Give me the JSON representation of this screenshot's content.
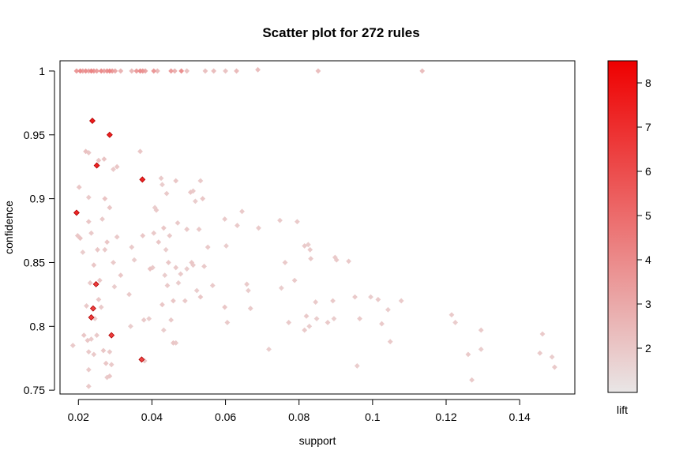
{
  "chart_data": {
    "type": "scatter",
    "title": "Scatter plot for 272 rules",
    "xlabel": "support",
    "ylabel": "confidence",
    "colorbar_label": "lift",
    "xlim": [
      0.015,
      0.155
    ],
    "ylim": [
      0.747,
      1.008
    ],
    "xticks": [
      0.02,
      0.04,
      0.06,
      0.08,
      0.1,
      0.12,
      0.14
    ],
    "xtick_labels": [
      "0.02",
      "0.04",
      "0.06",
      "0.08",
      "0.1",
      "0.12",
      "0.14"
    ],
    "yticks": [
      0.75,
      0.8,
      0.85,
      0.9,
      0.95,
      1.0
    ],
    "ytick_labels": [
      "0.75",
      "0.8",
      "0.85",
      "0.9",
      "0.95",
      "1"
    ],
    "color_scale": {
      "min": 1.0,
      "max": 8.5,
      "low_color": "#e9e6e6",
      "high_color": "#ee0000",
      "ticks": [
        2,
        3,
        4,
        5,
        6,
        7,
        8
      ],
      "tick_labels": [
        "2",
        "3",
        "4",
        "5",
        "6",
        "7",
        "8"
      ]
    },
    "points": [
      {
        "x": 0.0195,
        "y": 1.0,
        "lift": 3.5
      },
      {
        "x": 0.0205,
        "y": 1.0,
        "lift": 4.0
      },
      {
        "x": 0.0212,
        "y": 1.0,
        "lift": 3.2
      },
      {
        "x": 0.022,
        "y": 1.0,
        "lift": 3.8
      },
      {
        "x": 0.0228,
        "y": 1.0,
        "lift": 3.0
      },
      {
        "x": 0.0235,
        "y": 1.0,
        "lift": 4.2
      },
      {
        "x": 0.0242,
        "y": 1.0,
        "lift": 3.6
      },
      {
        "x": 0.025,
        "y": 1.0,
        "lift": 3.3
      },
      {
        "x": 0.0262,
        "y": 1.0,
        "lift": 3.9
      },
      {
        "x": 0.027,
        "y": 1.0,
        "lift": 3.1
      },
      {
        "x": 0.0278,
        "y": 1.0,
        "lift": 3.7
      },
      {
        "x": 0.0285,
        "y": 1.0,
        "lift": 4.1
      },
      {
        "x": 0.0292,
        "y": 1.0,
        "lift": 3.4
      },
      {
        "x": 0.03,
        "y": 1.0,
        "lift": 3.0
      },
      {
        "x": 0.0315,
        "y": 1.0,
        "lift": 2.6
      },
      {
        "x": 0.0345,
        "y": 1.0,
        "lift": 2.5
      },
      {
        "x": 0.0358,
        "y": 1.0,
        "lift": 3.4
      },
      {
        "x": 0.0368,
        "y": 1.0,
        "lift": 3.9
      },
      {
        "x": 0.0375,
        "y": 1.0,
        "lift": 3.6
      },
      {
        "x": 0.0382,
        "y": 1.0,
        "lift": 3.0
      },
      {
        "x": 0.0405,
        "y": 1.0,
        "lift": 3.5
      },
      {
        "x": 0.0415,
        "y": 1.0,
        "lift": 2.4
      },
      {
        "x": 0.0452,
        "y": 1.0,
        "lift": 3.4
      },
      {
        "x": 0.0462,
        "y": 1.0,
        "lift": 2.7
      },
      {
        "x": 0.048,
        "y": 1.0,
        "lift": 3.8
      },
      {
        "x": 0.0495,
        "y": 1.0,
        "lift": 2.2
      },
      {
        "x": 0.0545,
        "y": 1.0,
        "lift": 2.2
      },
      {
        "x": 0.0568,
        "y": 1.0,
        "lift": 2.3
      },
      {
        "x": 0.06,
        "y": 1.0,
        "lift": 2.1
      },
      {
        "x": 0.063,
        "y": 1.0,
        "lift": 2.4
      },
      {
        "x": 0.0688,
        "y": 1.001,
        "lift": 2.3
      },
      {
        "x": 0.0852,
        "y": 1.0,
        "lift": 2.3
      },
      {
        "x": 0.1135,
        "y": 1.0,
        "lift": 2.3
      },
      {
        "x": 0.0238,
        "y": 0.961,
        "lift": 7.6
      },
      {
        "x": 0.0285,
        "y": 0.95,
        "lift": 7.5
      },
      {
        "x": 0.025,
        "y": 0.926,
        "lift": 7.4
      },
      {
        "x": 0.0374,
        "y": 0.915,
        "lift": 7.4
      },
      {
        "x": 0.0195,
        "y": 0.889,
        "lift": 7.3
      },
      {
        "x": 0.0248,
        "y": 0.833,
        "lift": 6.5
      },
      {
        "x": 0.024,
        "y": 0.814,
        "lift": 6.4
      },
      {
        "x": 0.0235,
        "y": 0.807,
        "lift": 6.6
      },
      {
        "x": 0.029,
        "y": 0.793,
        "lift": 6.5
      },
      {
        "x": 0.0372,
        "y": 0.774,
        "lift": 6.3
      },
      {
        "x": 0.022,
        "y": 0.937,
        "lift": 2.2
      },
      {
        "x": 0.0228,
        "y": 0.936,
        "lift": 2.0
      },
      {
        "x": 0.0255,
        "y": 0.93,
        "lift": 2.0
      },
      {
        "x": 0.027,
        "y": 0.931,
        "lift": 2.1
      },
      {
        "x": 0.0305,
        "y": 0.925,
        "lift": 2.0
      },
      {
        "x": 0.0295,
        "y": 0.923,
        "lift": 1.9
      },
      {
        "x": 0.0368,
        "y": 0.937,
        "lift": 2.0
      },
      {
        "x": 0.0202,
        "y": 0.909,
        "lift": 2.0
      },
      {
        "x": 0.0228,
        "y": 0.901,
        "lift": 1.9
      },
      {
        "x": 0.0272,
        "y": 0.9,
        "lift": 2.1
      },
      {
        "x": 0.0285,
        "y": 0.893,
        "lift": 2.0
      },
      {
        "x": 0.0265,
        "y": 0.884,
        "lift": 1.9
      },
      {
        "x": 0.0228,
        "y": 0.882,
        "lift": 2.0
      },
      {
        "x": 0.0198,
        "y": 0.871,
        "lift": 2.0
      },
      {
        "x": 0.0205,
        "y": 0.869,
        "lift": 2.1
      },
      {
        "x": 0.0235,
        "y": 0.873,
        "lift": 1.9
      },
      {
        "x": 0.0278,
        "y": 0.866,
        "lift": 2.0
      },
      {
        "x": 0.0305,
        "y": 0.87,
        "lift": 1.9
      },
      {
        "x": 0.0212,
        "y": 0.858,
        "lift": 1.8
      },
      {
        "x": 0.0252,
        "y": 0.86,
        "lift": 2.0
      },
      {
        "x": 0.0272,
        "y": 0.86,
        "lift": 1.9
      },
      {
        "x": 0.0242,
        "y": 0.848,
        "lift": 2.0
      },
      {
        "x": 0.0295,
        "y": 0.85,
        "lift": 1.9
      },
      {
        "x": 0.0258,
        "y": 0.836,
        "lift": 2.0
      },
      {
        "x": 0.0315,
        "y": 0.84,
        "lift": 2.0
      },
      {
        "x": 0.0232,
        "y": 0.834,
        "lift": 1.9
      },
      {
        "x": 0.0298,
        "y": 0.831,
        "lift": 1.8
      },
      {
        "x": 0.0255,
        "y": 0.821,
        "lift": 2.0
      },
      {
        "x": 0.0222,
        "y": 0.816,
        "lift": 1.9
      },
      {
        "x": 0.0262,
        "y": 0.815,
        "lift": 1.9
      },
      {
        "x": 0.0245,
        "y": 0.806,
        "lift": 1.8
      },
      {
        "x": 0.0215,
        "y": 0.793,
        "lift": 2.0
      },
      {
        "x": 0.0235,
        "y": 0.79,
        "lift": 1.9
      },
      {
        "x": 0.025,
        "y": 0.793,
        "lift": 1.9
      },
      {
        "x": 0.0225,
        "y": 0.789,
        "lift": 2.0
      },
      {
        "x": 0.0185,
        "y": 0.785,
        "lift": 1.9
      },
      {
        "x": 0.0228,
        "y": 0.78,
        "lift": 1.9
      },
      {
        "x": 0.0242,
        "y": 0.778,
        "lift": 1.9
      },
      {
        "x": 0.0268,
        "y": 0.781,
        "lift": 2.0
      },
      {
        "x": 0.0285,
        "y": 0.78,
        "lift": 1.9
      },
      {
        "x": 0.0275,
        "y": 0.771,
        "lift": 2.0
      },
      {
        "x": 0.029,
        "y": 0.77,
        "lift": 1.9
      },
      {
        "x": 0.0228,
        "y": 0.766,
        "lift": 1.9
      },
      {
        "x": 0.0285,
        "y": 0.761,
        "lift": 2.0
      },
      {
        "x": 0.0278,
        "y": 0.76,
        "lift": 1.9
      },
      {
        "x": 0.0228,
        "y": 0.753,
        "lift": 1.9
      },
      {
        "x": 0.0345,
        "y": 0.862,
        "lift": 1.9
      },
      {
        "x": 0.0352,
        "y": 0.852,
        "lift": 1.8
      },
      {
        "x": 0.0338,
        "y": 0.825,
        "lift": 1.9
      },
      {
        "x": 0.0375,
        "y": 0.871,
        "lift": 2.0
      },
      {
        "x": 0.0378,
        "y": 0.805,
        "lift": 1.9
      },
      {
        "x": 0.0342,
        "y": 0.8,
        "lift": 1.8
      },
      {
        "x": 0.038,
        "y": 0.773,
        "lift": 2.0
      },
      {
        "x": 0.0405,
        "y": 0.873,
        "lift": 1.9
      },
      {
        "x": 0.0412,
        "y": 0.891,
        "lift": 1.9
      },
      {
        "x": 0.0408,
        "y": 0.893,
        "lift": 1.8
      },
      {
        "x": 0.0418,
        "y": 0.866,
        "lift": 2.0
      },
      {
        "x": 0.0395,
        "y": 0.845,
        "lift": 2.1
      },
      {
        "x": 0.0402,
        "y": 0.846,
        "lift": 1.9
      },
      {
        "x": 0.0392,
        "y": 0.806,
        "lift": 1.8
      },
      {
        "x": 0.0425,
        "y": 0.916,
        "lift": 1.9
      },
      {
        "x": 0.0428,
        "y": 0.911,
        "lift": 1.8
      },
      {
        "x": 0.044,
        "y": 0.904,
        "lift": 1.9
      },
      {
        "x": 0.0432,
        "y": 0.877,
        "lift": 2.0
      },
      {
        "x": 0.0448,
        "y": 0.871,
        "lift": 1.9
      },
      {
        "x": 0.0438,
        "y": 0.86,
        "lift": 1.8
      },
      {
        "x": 0.0445,
        "y": 0.85,
        "lift": 2.0
      },
      {
        "x": 0.0435,
        "y": 0.84,
        "lift": 1.8
      },
      {
        "x": 0.0442,
        "y": 0.832,
        "lift": 1.9
      },
      {
        "x": 0.0428,
        "y": 0.817,
        "lift": 2.0
      },
      {
        "x": 0.0452,
        "y": 0.805,
        "lift": 1.9
      },
      {
        "x": 0.0432,
        "y": 0.797,
        "lift": 1.8
      },
      {
        "x": 0.0458,
        "y": 0.787,
        "lift": 2.0
      },
      {
        "x": 0.0465,
        "y": 0.914,
        "lift": 2.0
      },
      {
        "x": 0.047,
        "y": 0.881,
        "lift": 1.9
      },
      {
        "x": 0.0465,
        "y": 0.846,
        "lift": 1.9
      },
      {
        "x": 0.0472,
        "y": 0.834,
        "lift": 1.8
      },
      {
        "x": 0.0458,
        "y": 0.82,
        "lift": 2.0
      },
      {
        "x": 0.0478,
        "y": 0.841,
        "lift": 1.9
      },
      {
        "x": 0.0465,
        "y": 0.787,
        "lift": 1.9
      },
      {
        "x": 0.0495,
        "y": 0.876,
        "lift": 1.9
      },
      {
        "x": 0.0505,
        "y": 0.905,
        "lift": 2.0
      },
      {
        "x": 0.0512,
        "y": 0.906,
        "lift": 1.9
      },
      {
        "x": 0.0518,
        "y": 0.898,
        "lift": 1.8
      },
      {
        "x": 0.0508,
        "y": 0.85,
        "lift": 2.0
      },
      {
        "x": 0.0512,
        "y": 0.848,
        "lift": 1.9
      },
      {
        "x": 0.0495,
        "y": 0.845,
        "lift": 1.8
      },
      {
        "x": 0.049,
        "y": 0.82,
        "lift": 1.9
      },
      {
        "x": 0.0532,
        "y": 0.914,
        "lift": 1.9
      },
      {
        "x": 0.0538,
        "y": 0.9,
        "lift": 2.0
      },
      {
        "x": 0.0528,
        "y": 0.876,
        "lift": 1.9
      },
      {
        "x": 0.0542,
        "y": 0.847,
        "lift": 1.9
      },
      {
        "x": 0.0522,
        "y": 0.828,
        "lift": 1.8
      },
      {
        "x": 0.0532,
        "y": 0.823,
        "lift": 2.0
      },
      {
        "x": 0.0552,
        "y": 0.862,
        "lift": 1.9
      },
      {
        "x": 0.0565,
        "y": 0.832,
        "lift": 1.9
      },
      {
        "x": 0.0598,
        "y": 0.884,
        "lift": 1.9
      },
      {
        "x": 0.0602,
        "y": 0.863,
        "lift": 1.8
      },
      {
        "x": 0.0598,
        "y": 0.815,
        "lift": 2.0
      },
      {
        "x": 0.0605,
        "y": 0.803,
        "lift": 1.9
      },
      {
        "x": 0.0632,
        "y": 0.879,
        "lift": 1.9
      },
      {
        "x": 0.0645,
        "y": 0.89,
        "lift": 1.9
      },
      {
        "x": 0.0658,
        "y": 0.833,
        "lift": 1.9
      },
      {
        "x": 0.0662,
        "y": 0.828,
        "lift": 1.8
      },
      {
        "x": 0.0668,
        "y": 0.814,
        "lift": 1.9
      },
      {
        "x": 0.069,
        "y": 0.877,
        "lift": 1.9
      },
      {
        "x": 0.0718,
        "y": 0.782,
        "lift": 1.8
      },
      {
        "x": 0.0748,
        "y": 0.883,
        "lift": 1.9
      },
      {
        "x": 0.0762,
        "y": 0.85,
        "lift": 1.9
      },
      {
        "x": 0.0752,
        "y": 0.83,
        "lift": 1.8
      },
      {
        "x": 0.0772,
        "y": 0.803,
        "lift": 1.9
      },
      {
        "x": 0.0788,
        "y": 0.836,
        "lift": 1.9
      },
      {
        "x": 0.0795,
        "y": 0.882,
        "lift": 1.9
      },
      {
        "x": 0.0815,
        "y": 0.863,
        "lift": 1.9
      },
      {
        "x": 0.0825,
        "y": 0.864,
        "lift": 1.8
      },
      {
        "x": 0.083,
        "y": 0.86,
        "lift": 1.9
      },
      {
        "x": 0.0832,
        "y": 0.853,
        "lift": 1.9
      },
      {
        "x": 0.0828,
        "y": 0.8,
        "lift": 1.8
      },
      {
        "x": 0.0815,
        "y": 0.797,
        "lift": 1.9
      },
      {
        "x": 0.082,
        "y": 0.808,
        "lift": 1.9
      },
      {
        "x": 0.0845,
        "y": 0.819,
        "lift": 1.9
      },
      {
        "x": 0.0848,
        "y": 0.806,
        "lift": 1.8
      },
      {
        "x": 0.0878,
        "y": 0.803,
        "lift": 1.9
      },
      {
        "x": 0.0892,
        "y": 0.82,
        "lift": 1.9
      },
      {
        "x": 0.0895,
        "y": 0.806,
        "lift": 1.8
      },
      {
        "x": 0.0898,
        "y": 0.854,
        "lift": 1.9
      },
      {
        "x": 0.0902,
        "y": 0.852,
        "lift": 1.9
      },
      {
        "x": 0.0935,
        "y": 0.851,
        "lift": 1.9
      },
      {
        "x": 0.0952,
        "y": 0.823,
        "lift": 1.9
      },
      {
        "x": 0.0958,
        "y": 0.769,
        "lift": 1.8
      },
      {
        "x": 0.0965,
        "y": 0.806,
        "lift": 1.9
      },
      {
        "x": 0.0995,
        "y": 0.823,
        "lift": 1.8
      },
      {
        "x": 0.1015,
        "y": 0.821,
        "lift": 1.9
      },
      {
        "x": 0.1025,
        "y": 0.802,
        "lift": 1.9
      },
      {
        "x": 0.1042,
        "y": 0.813,
        "lift": 1.8
      },
      {
        "x": 0.1048,
        "y": 0.788,
        "lift": 1.9
      },
      {
        "x": 0.1078,
        "y": 0.82,
        "lift": 1.9
      },
      {
        "x": 0.1215,
        "y": 0.809,
        "lift": 1.9
      },
      {
        "x": 0.1225,
        "y": 0.803,
        "lift": 1.8
      },
      {
        "x": 0.126,
        "y": 0.778,
        "lift": 1.9
      },
      {
        "x": 0.127,
        "y": 0.758,
        "lift": 1.9
      },
      {
        "x": 0.1295,
        "y": 0.797,
        "lift": 1.9
      },
      {
        "x": 0.1295,
        "y": 0.782,
        "lift": 1.8
      },
      {
        "x": 0.1462,
        "y": 0.794,
        "lift": 1.9
      },
      {
        "x": 0.1455,
        "y": 0.779,
        "lift": 1.9
      },
      {
        "x": 0.1488,
        "y": 0.776,
        "lift": 1.8
      },
      {
        "x": 0.1495,
        "y": 0.768,
        "lift": 1.9
      }
    ]
  }
}
